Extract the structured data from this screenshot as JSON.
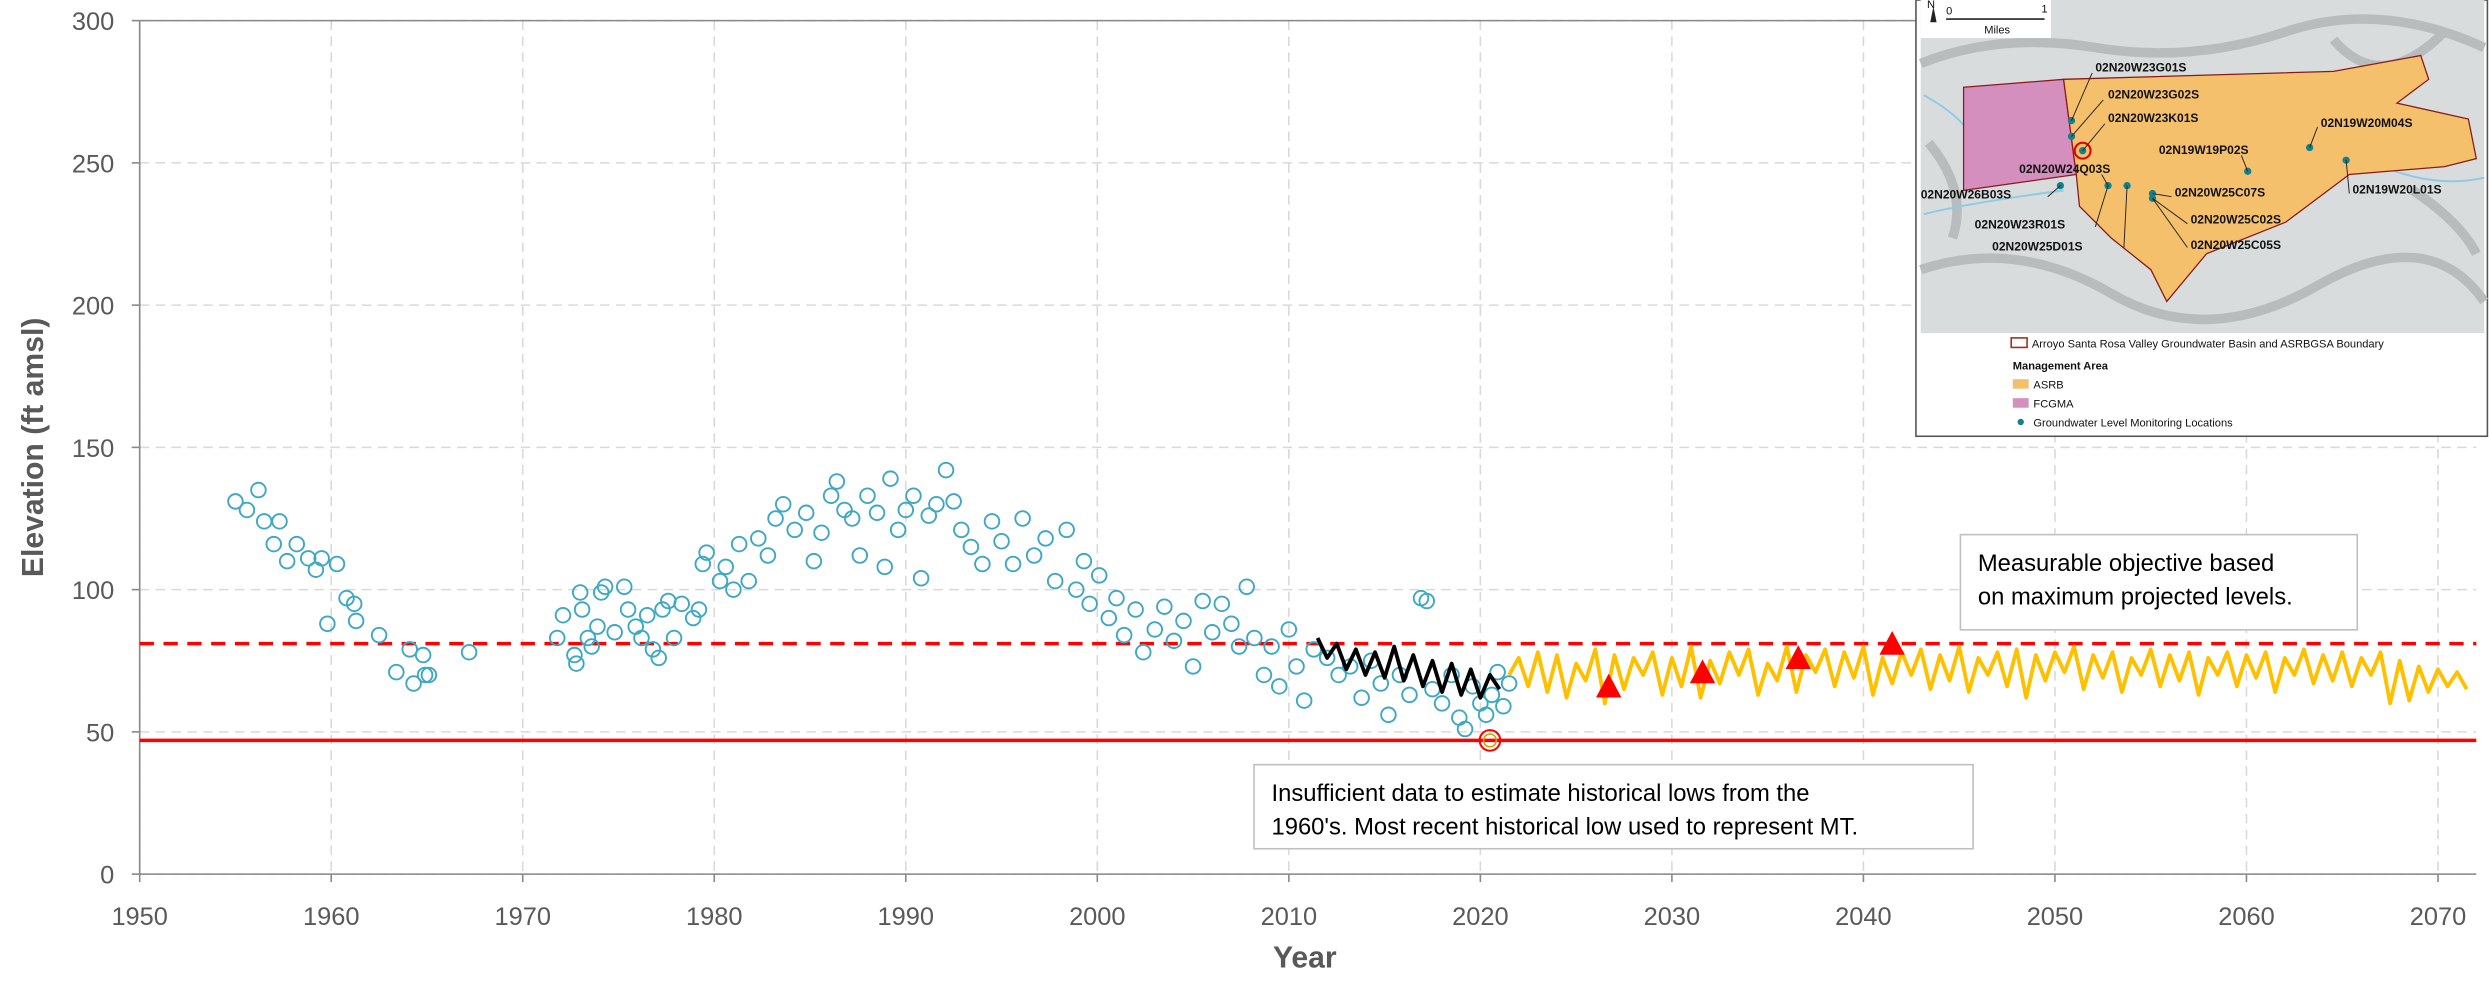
{
  "chart_data": {
    "type": "scatter",
    "xlabel": "Year",
    "ylabel": "Elevation (ft amsl)",
    "xlim": [
      1950,
      2072
    ],
    "ylim": [
      0,
      300
    ],
    "xticks": [
      1950,
      1960,
      1970,
      1980,
      1990,
      2000,
      2010,
      2020,
      2030,
      2040,
      2050,
      2060,
      2070
    ],
    "yticks": [
      0,
      50,
      100,
      150,
      200,
      250,
      300
    ],
    "grid": true,
    "series": [
      {
        "kind": "points",
        "color": "#3ea8c4",
        "x": [
          1955,
          1955.6,
          1956.2,
          1956.5,
          1957,
          1957.3,
          1957.7,
          1958.2,
          1958.8,
          1959.2,
          1959.5,
          1959.8,
          1960.3,
          1960.8,
          1961.2,
          1961.3,
          1962.5,
          1963.4,
          1964.1,
          1964.3,
          1964.8,
          1964.9,
          1965.1,
          1967.2,
          1971.8,
          1972.1,
          1972.7,
          1972.8,
          1973,
          1973.1,
          1973.4,
          1973.6,
          1973.9,
          1974.1,
          1974.3,
          1974.8,
          1975.3,
          1975.5,
          1975.9,
          1976.2,
          1976.5,
          1976.8,
          1977.1,
          1977.3,
          1977.6,
          1977.9,
          1978.3,
          1978.9,
          1979.2,
          1979.4,
          1979.6,
          1980.3,
          1980.6,
          1981,
          1981.3,
          1981.8,
          1982.3,
          1982.8,
          1983.2,
          1983.6,
          1984.2,
          1984.8,
          1985.2,
          1985.6,
          1986.1,
          1986.4,
          1986.8,
          1987.2,
          1987.6,
          1988,
          1988.5,
          1988.9,
          1989.2,
          1989.6,
          1990,
          1990.4,
          1990.8,
          1991.2,
          1991.6,
          1992.1,
          1992.5,
          1992.9,
          1993.4,
          1994,
          1994.5,
          1995,
          1995.6,
          1996.1,
          1996.7,
          1997.3,
          1997.8,
          1998.4,
          1998.9,
          1999.3,
          1999.6,
          2000.1,
          2000.6,
          2001,
          2001.4,
          2002,
          2002.4,
          2003,
          2003.5,
          2004,
          2004.5,
          2005,
          2005.5,
          2006,
          2006.5,
          2007,
          2007.4,
          2007.8,
          2008.2,
          2008.7,
          2009.1,
          2009.5,
          2010,
          2010.4,
          2010.8,
          2011.3,
          2012,
          2012.6,
          2013.2,
          2013.8,
          2014.3,
          2014.8,
          2015.2,
          2015.8,
          2016.3,
          2016.9,
          2017.2,
          2017.5,
          2018,
          2018.5,
          2018.9,
          2019.2,
          2019.6,
          2020,
          2020.3,
          2020.6,
          2020.9,
          2021.2,
          2021.5
        ],
        "values": [
          131,
          128,
          135,
          124,
          116,
          124,
          110,
          116,
          111,
          107,
          111,
          88,
          109,
          97,
          95,
          89,
          84,
          71,
          79,
          67,
          77,
          70,
          70,
          78,
          83,
          91,
          77,
          74,
          99,
          93,
          83,
          80,
          87,
          99,
          101,
          85,
          101,
          93,
          87,
          83,
          91,
          79,
          76,
          93,
          96,
          83,
          95,
          90,
          93,
          109,
          113,
          103,
          108,
          100,
          116,
          103,
          118,
          112,
          125,
          130,
          121,
          127,
          110,
          120,
          133,
          138,
          128,
          125,
          112,
          133,
          127,
          108,
          139,
          121,
          128,
          133,
          104,
          126,
          130,
          142,
          131,
          121,
          115,
          109,
          124,
          117,
          109,
          125,
          112,
          118,
          103,
          121,
          100,
          110,
          95,
          105,
          90,
          97,
          84,
          93,
          78,
          86,
          94,
          82,
          89,
          73,
          96,
          85,
          95,
          88,
          80,
          101,
          83,
          70,
          80,
          66,
          86,
          73,
          61,
          79,
          76,
          70,
          73,
          62,
          75,
          67,
          56,
          70,
          63,
          97,
          96,
          65,
          60,
          70,
          55,
          51,
          66,
          60,
          56,
          63,
          71,
          59,
          67
        ]
      },
      {
        "kind": "line",
        "color": "#000000",
        "x": [
          2011.5,
          2012,
          2012.5,
          2013,
          2013.5,
          2014,
          2014.5,
          2015,
          2015.5,
          2016,
          2016.5,
          2017,
          2017.5,
          2018,
          2018.5,
          2019,
          2019.5,
          2020,
          2020.5,
          2021
        ],
        "values": [
          83,
          76,
          81,
          72,
          79,
          70,
          78,
          69,
          80,
          68,
          77,
          66,
          75,
          64,
          74,
          63,
          72,
          62,
          70,
          65
        ]
      },
      {
        "kind": "line",
        "color": "#ffc000",
        "x": [
          2021.5,
          2022,
          2022.5,
          2023,
          2023.5,
          2024,
          2024.5,
          2025,
          2025.5,
          2026,
          2026.5,
          2027,
          2027.5,
          2028,
          2028.5,
          2029,
          2029.5,
          2030,
          2030.5,
          2031,
          2031.5,
          2032,
          2032.5,
          2033,
          2033.5,
          2034,
          2034.5,
          2035,
          2035.5,
          2036,
          2036.5,
          2037,
          2037.5,
          2038,
          2038.5,
          2039,
          2039.5,
          2040,
          2040.5,
          2041,
          2041.5,
          2042,
          2042.5,
          2043,
          2043.5,
          2044,
          2044.5,
          2045,
          2045.5,
          2046,
          2046.5,
          2047,
          2047.5,
          2048,
          2048.5,
          2049,
          2049.5,
          2050,
          2050.5,
          2051,
          2051.5,
          2052,
          2052.5,
          2053,
          2053.5,
          2054,
          2054.5,
          2055,
          2055.5,
          2056,
          2056.5,
          2057,
          2057.5,
          2058,
          2058.5,
          2059,
          2059.5,
          2060,
          2060.5,
          2061,
          2061.5,
          2062,
          2062.5,
          2063,
          2063.5,
          2064,
          2064.5,
          2065,
          2065.5,
          2066,
          2066.5,
          2067,
          2067.5,
          2068,
          2068.5,
          2069,
          2069.5,
          2070,
          2070.5,
          2071,
          2071.5
        ],
        "values": [
          70,
          76,
          66,
          78,
          64,
          77,
          62,
          74,
          68,
          79,
          60,
          77,
          65,
          76,
          70,
          78,
          63,
          76,
          66,
          80,
          62,
          75,
          67,
          78,
          70,
          79,
          63,
          74,
          68,
          80,
          64,
          77,
          71,
          79,
          66,
          78,
          69,
          80,
          63,
          76,
          67,
          78,
          70,
          79,
          65,
          77,
          68,
          80,
          64,
          76,
          70,
          78,
          66,
          79,
          62,
          77,
          68,
          78,
          71,
          80,
          65,
          77,
          69,
          78,
          64,
          76,
          70,
          79,
          66,
          77,
          68,
          78,
          63,
          76,
          70,
          78,
          66,
          77,
          69,
          78,
          64,
          76,
          70,
          79,
          67,
          77,
          68,
          78,
          66,
          76,
          70,
          78,
          60,
          75,
          61,
          73,
          64,
          72,
          66,
          71,
          65
        ]
      },
      {
        "kind": "triangles",
        "color": "#ff0000",
        "x": [
          2026.7,
          2031.6,
          2036.6,
          2041.5
        ],
        "values": [
          66,
          71,
          76,
          81
        ]
      }
    ],
    "reference_lines": [
      {
        "value": 81,
        "color": "#ff0000",
        "style": "dashed"
      },
      {
        "value": 47,
        "color": "#ff0000",
        "style": "solid"
      }
    ],
    "highlight": {
      "x": 2020.5,
      "value": 47,
      "color": "#ff0000"
    },
    "annotations": [
      {
        "lines": [
          "Measurable objective based",
          "on maximum projected levels."
        ]
      },
      {
        "lines": [
          "Insufficient data to estimate historical lows from the",
          "1960's. Most recent historical low used to represent MT."
        ]
      }
    ]
  },
  "map": {
    "north": "N",
    "scale_labels": [
      "0",
      "1"
    ],
    "scale_unit": "Miles",
    "labels": [
      "02N20W23G01S",
      "02N20W23G02S",
      "02N20W23K01S",
      "02N19W20M04S",
      "02N19W19P02S",
      "02N20W24Q03S",
      "02N20W26B03S",
      "02N20W25C07S",
      "02N19W20L01S",
      "02N20W25C02S",
      "02N20W23R01S",
      "02N20W25D01S",
      "02N20W25C05S"
    ],
    "legend": {
      "boundary": "Arroyo Santa Rosa Valley Groundwater Basin and ASRBGSA Boundary",
      "heading": "Management Area",
      "items": [
        "ASRB",
        "FCGMA",
        "Groundwater Level Monitoring Locations"
      ]
    }
  }
}
